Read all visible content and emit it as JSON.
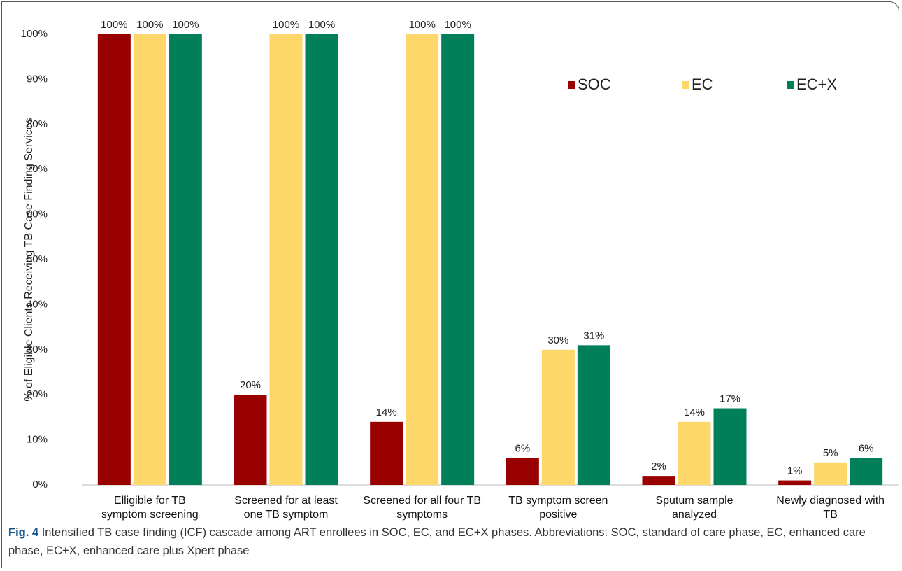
{
  "chart_data": {
    "type": "bar",
    "y_label": "% of Eligible Clients Receiving TB Case Finding Services",
    "categories": [
      "Elligible for TB\nsymptom screening",
      "Screened for at least\none TB symptom",
      "Screened for all four TB\nsymptoms",
      "TB symptom screen\npositive",
      "Sputum sample\nanalyzed",
      "Newly diagnosed with\nTB"
    ],
    "series": [
      {
        "name": "SOC",
        "color": "#990000",
        "values": [
          100,
          20,
          14,
          6,
          2,
          1
        ]
      },
      {
        "name": "EC",
        "color": "#fdd76a",
        "values": [
          100,
          100,
          100,
          30,
          14,
          5
        ]
      },
      {
        "name": "EC+X",
        "color": "#007f58",
        "values": [
          100,
          100,
          100,
          31,
          17,
          6
        ]
      }
    ],
    "value_suffix_labels": null,
    "ylim": [
      0,
      100
    ],
    "yticks": [
      {
        "value": 0,
        "label": "0%"
      },
      {
        "value": 10,
        "label": "10%"
      },
      {
        "value": 20,
        "label": "20%"
      },
      {
        "value": 30,
        "label": "30%"
      },
      {
        "value": 40,
        "label": "40%"
      },
      {
        "value": 50,
        "label": "50%"
      },
      {
        "value": 60,
        "label": "60%"
      },
      {
        "value": 70,
        "label": "70%"
      },
      {
        "value": 80,
        "label": "80%"
      },
      {
        "value": 90,
        "label": "90%"
      },
      {
        "value": 100,
        "label": "100%"
      }
    ],
    "value_labels": [
      [
        "100%",
        "20%",
        "14%",
        "6%",
        "2%",
        "1%"
      ],
      [
        "100%",
        "100%",
        "100%",
        "30%",
        "14%",
        "5%"
      ],
      [
        "100%",
        "100%",
        "100%",
        "31%",
        "17%",
        "6%"
      ]
    ],
    "legend": "top-right",
    "caption_label": "Fig. 4",
    "caption": "Intensified TB case finding (ICF) cascade among ART enrollees in SOC, EC, and EC+X phases. Abbreviations: SOC, standard of care phase, EC, enhanced care phase, EC+X, enhanced care plus Xpert phase"
  }
}
